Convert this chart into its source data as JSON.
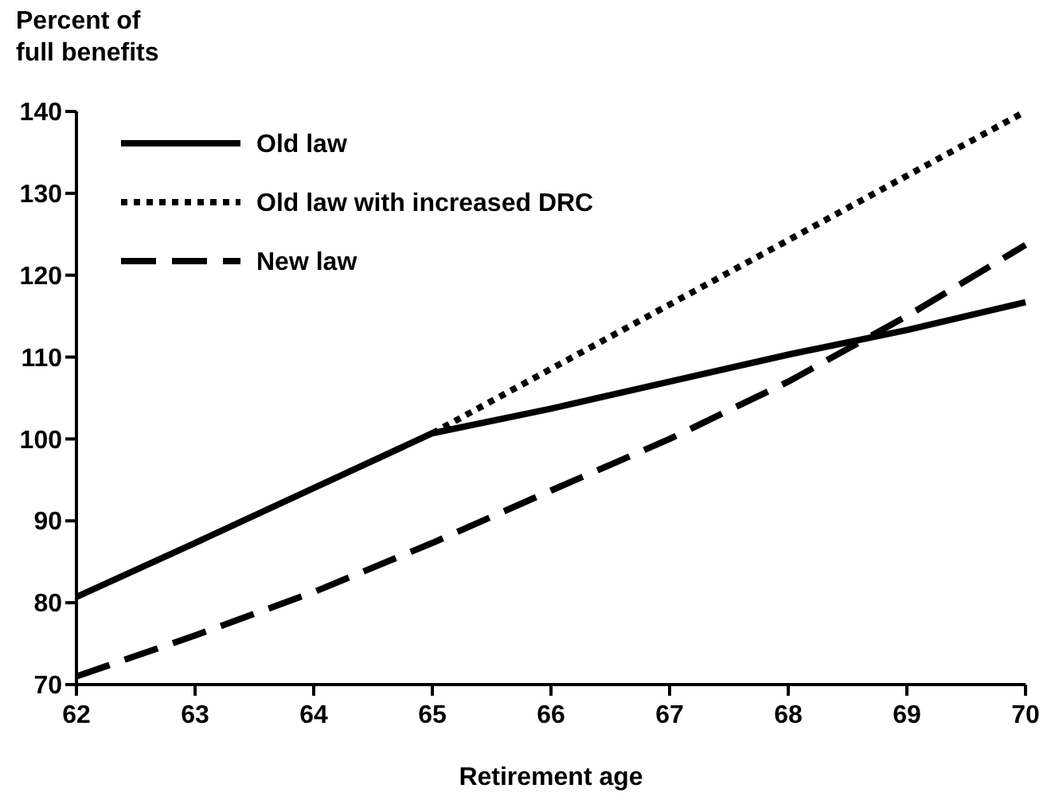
{
  "chart_data": {
    "type": "line",
    "ylabel": "Percent of\nfull benefits",
    "xlabel": "Retirement age",
    "xlim": [
      62,
      70
    ],
    "xticks": [
      62,
      63,
      64,
      65,
      66,
      67,
      68,
      69,
      70
    ],
    "ylim": [
      70,
      140
    ],
    "yticks": [
      70,
      80,
      90,
      100,
      110,
      120,
      130,
      140
    ],
    "legend": "top left",
    "grid": false,
    "series": [
      {
        "name": "Old law",
        "color": "#000000",
        "line_style": "solid",
        "x": [
          62,
          63,
          64,
          65,
          66,
          67,
          68,
          69,
          70
        ],
        "values": [
          80.7,
          87.3,
          94,
          100.7,
          103.7,
          107,
          110.3,
          113.3,
          116.7
        ]
      },
      {
        "name": "Old law with increased DRC",
        "color": "#000000",
        "line_style": "dotted",
        "x": [
          65,
          70
        ],
        "values": [
          100.7,
          140
        ]
      },
      {
        "name": "New law",
        "color": "#000000",
        "line_style": "dashed",
        "x": [
          62,
          63,
          64,
          65,
          66,
          67,
          68,
          69,
          70
        ],
        "values": [
          71,
          76,
          81.3,
          87.3,
          93.7,
          100,
          107,
          115,
          123.7
        ]
      }
    ]
  }
}
